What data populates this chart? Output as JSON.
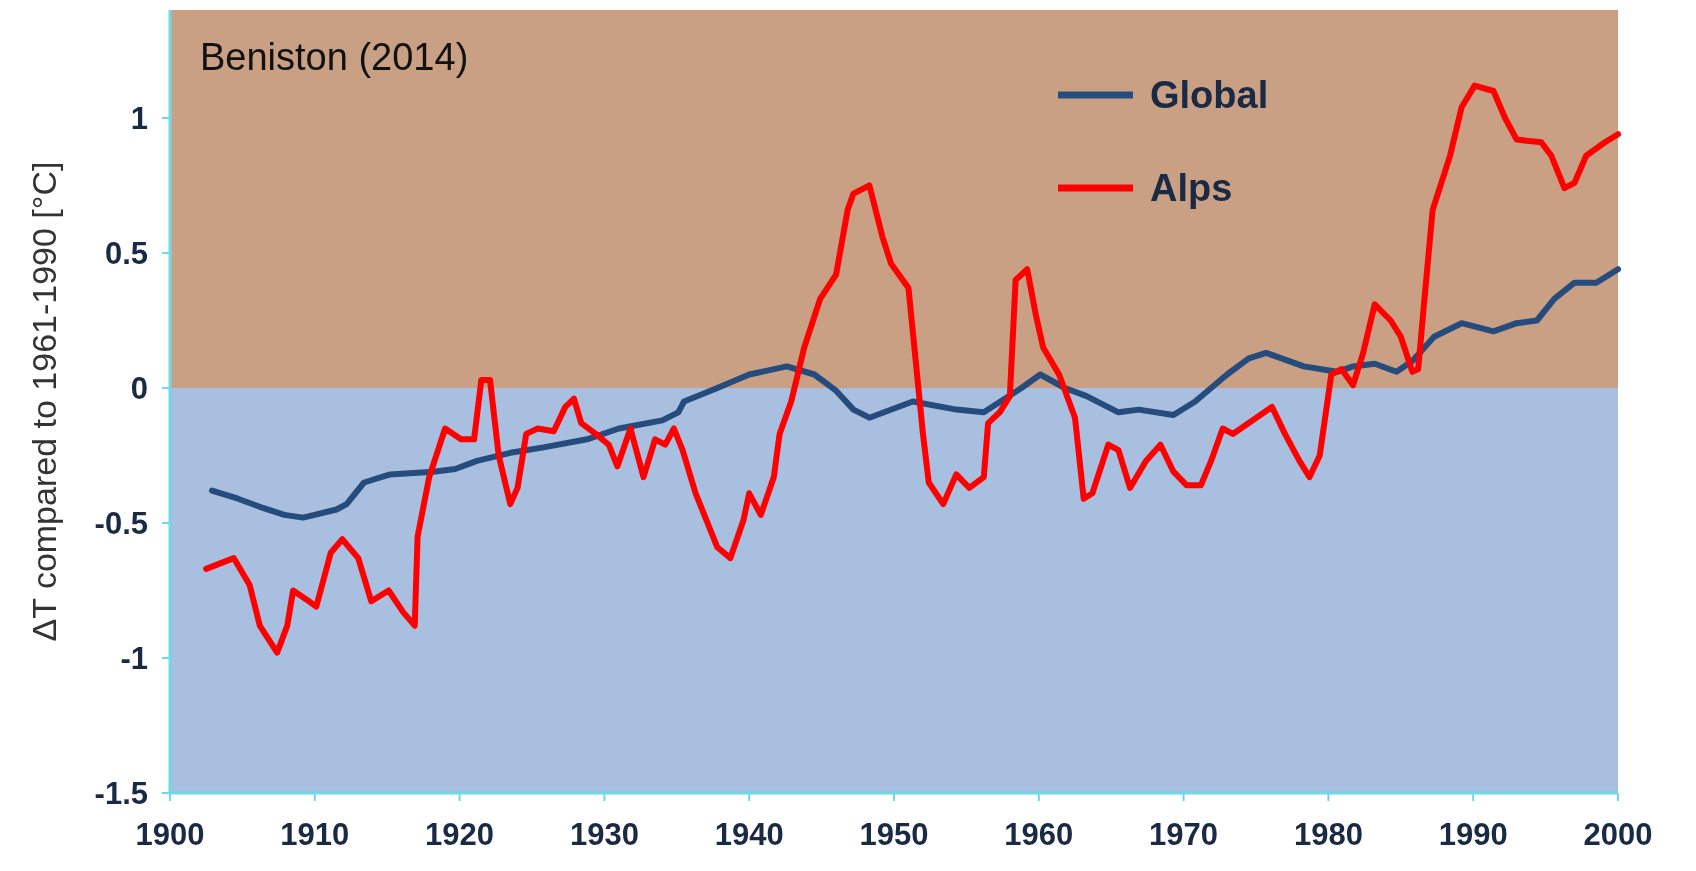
{
  "chart_data": {
    "type": "line",
    "ylabel": "ΔT compared to 1961-1990 [°C]",
    "annotations": [
      "Beniston (2014)"
    ],
    "xlim": [
      1900,
      2000
    ],
    "xticks": [
      1900,
      1910,
      1920,
      1930,
      1940,
      1950,
      1960,
      1970,
      1980,
      1990,
      2000
    ],
    "ylim": [
      -1.5,
      1.4
    ],
    "yticks": [
      -1.5,
      -1,
      -0.5,
      0,
      0.5,
      1
    ],
    "grid": false,
    "legend": "top right",
    "line_style": "solid",
    "marker": "none",
    "bands": [
      {
        "axis": "y",
        "from": -1.5,
        "to": 0,
        "color": "#a9bfdf"
      },
      {
        "axis": "y",
        "from": 0,
        "to": 1.4,
        "color": "#c9a083"
      }
    ],
    "series": [
      {
        "name": "Global",
        "color": "#264b7d",
        "x": [
          1902.9,
          1904.7,
          1906.2,
          1907.9,
          1909.2,
          1911.5,
          1912.2,
          1913.4,
          1915.2,
          1918.2,
          1919.7,
          1921.2,
          1923.5,
          1925.8,
          1928.8,
          1931,
          1934,
          1935.1,
          1935.5,
          1937.8,
          1940,
          1942.6,
          1944.5,
          1946,
          1947.2,
          1948.3,
          1951.3,
          1954.3,
          1956.2,
          1958.8,
          1960.1,
          1961.8,
          1963.3,
          1965.5,
          1966.9,
          1969.3,
          1970.8,
          1973,
          1974.5,
          1975.7,
          1978.3,
          1980.6,
          1981.7,
          1983.2,
          1984.7,
          1985.8,
          1987.3,
          1989.2,
          1991.4,
          1993,
          1994.4,
          1995.6,
          1997,
          1998.5,
          2000
        ],
        "values": [
          -0.38,
          -0.41,
          -0.44,
          -0.47,
          -0.48,
          -0.45,
          -0.43,
          -0.35,
          -0.32,
          -0.31,
          -0.3,
          -0.27,
          -0.24,
          -0.22,
          -0.19,
          -0.15,
          -0.12,
          -0.09,
          -0.05,
          0,
          0.05,
          0.08,
          0.05,
          -0.01,
          -0.08,
          -0.11,
          -0.05,
          -0.08,
          -0.09,
          0,
          0.05,
          0,
          -0.03,
          -0.09,
          -0.08,
          -0.1,
          -0.05,
          0.05,
          0.11,
          0.13,
          0.08,
          0.06,
          0.08,
          0.09,
          0.06,
          0.1,
          0.19,
          0.24,
          0.21,
          0.24,
          0.25,
          0.33,
          0.39,
          0.39,
          0.44
        ]
      },
      {
        "name": "Alps",
        "color": "#ff0000",
        "x": [
          1902.5,
          1904.4,
          1905.5,
          1906.2,
          1907.4,
          1908.1,
          1908.5,
          1909.6,
          1910.1,
          1911.1,
          1911.9,
          1913,
          1913.9,
          1915.1,
          1916.1,
          1916.9,
          1917.1,
          1917.9,
          1919,
          1920.1,
          1921,
          1921.5,
          1922.1,
          1922.7,
          1923.5,
          1924,
          1924.6,
          1925.4,
          1926.5,
          1927.3,
          1927.9,
          1928.4,
          1929.4,
          1930.3,
          1930.9,
          1931.8,
          1932.7,
          1933.5,
          1934.2,
          1934.8,
          1935.4,
          1936.3,
          1937.8,
          1938.7,
          1939.6,
          1940,
          1940.8,
          1941.7,
          1942.1,
          1942.9,
          1943.8,
          1944.9,
          1946,
          1946.8,
          1947.2,
          1948.3,
          1949.2,
          1949.8,
          1951,
          1952,
          1952.4,
          1953.4,
          1954.3,
          1955.2,
          1956.2,
          1956.5,
          1957.3,
          1958,
          1958.4,
          1959.2,
          1959.8,
          1960.3,
          1961.4,
          1962.5,
          1963.1,
          1963.7,
          1964.8,
          1965.5,
          1966.3,
          1967.4,
          1968.4,
          1969.3,
          1970.2,
          1971.2,
          1971.9,
          1972.7,
          1973.4,
          1974.5,
          1976.1,
          1977,
          1978,
          1978.7,
          1979.4,
          1980.2,
          1980.9,
          1981.7,
          1982.4,
          1983.2,
          1984.3,
          1985,
          1985.8,
          1986.2,
          1986.6,
          1987.2,
          1988.4,
          1989.2,
          1990.1,
          1991.4,
          1992.2,
          1993,
          1994.7,
          1995.4,
          1996.3,
          1997,
          1997.8,
          1999.1,
          2000
        ],
        "values": [
          -0.67,
          -0.63,
          -0.73,
          -0.88,
          -0.98,
          -0.88,
          -0.75,
          -0.79,
          -0.81,
          -0.61,
          -0.56,
          -0.63,
          -0.79,
          -0.75,
          -0.83,
          -0.88,
          -0.55,
          -0.33,
          -0.15,
          -0.19,
          -0.19,
          0.03,
          0.03,
          -0.25,
          -0.43,
          -0.37,
          -0.17,
          -0.15,
          -0.16,
          -0.07,
          -0.04,
          -0.13,
          -0.17,
          -0.21,
          -0.29,
          -0.15,
          -0.33,
          -0.19,
          -0.21,
          -0.15,
          -0.23,
          -0.39,
          -0.59,
          -0.63,
          -0.49,
          -0.39,
          -0.47,
          -0.33,
          -0.17,
          -0.05,
          0.15,
          0.33,
          0.42,
          0.66,
          0.72,
          0.75,
          0.56,
          0.46,
          0.37,
          -0.17,
          -0.35,
          -0.43,
          -0.32,
          -0.37,
          -0.33,
          -0.13,
          -0.09,
          -0.03,
          0.4,
          0.44,
          0.27,
          0.15,
          0.05,
          -0.11,
          -0.41,
          -0.39,
          -0.21,
          -0.23,
          -0.37,
          -0.27,
          -0.21,
          -0.31,
          -0.36,
          -0.36,
          -0.27,
          -0.15,
          -0.17,
          -0.13,
          -0.07,
          -0.17,
          -0.27,
          -0.33,
          -0.25,
          0.05,
          0.07,
          0.01,
          0.13,
          0.31,
          0.25,
          0.19,
          0.06,
          0.07,
          0.31,
          0.66,
          0.86,
          1.04,
          1.12,
          1.1,
          1,
          0.92,
          0.91,
          0.86,
          0.74,
          0.76,
          0.86,
          0.91,
          0.94
        ]
      }
    ]
  }
}
